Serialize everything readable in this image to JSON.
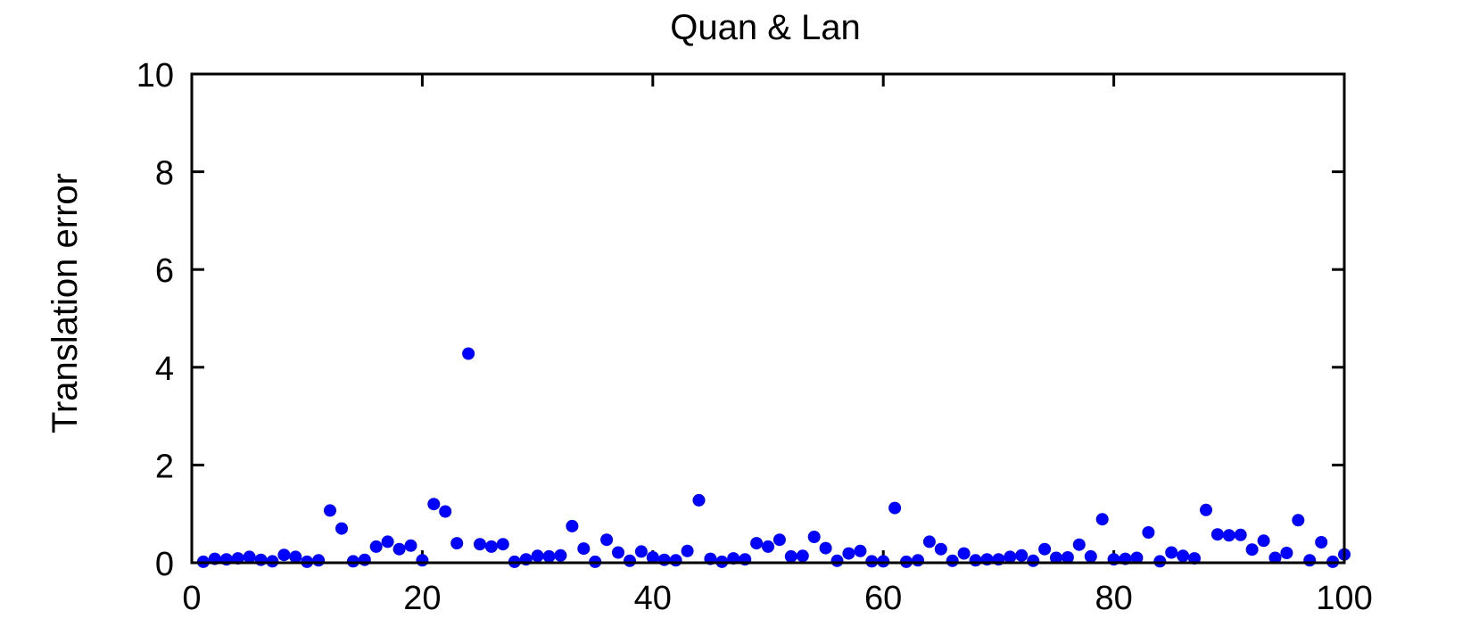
{
  "chart_data": {
    "type": "scatter",
    "title": "Quan & Lan",
    "xlabel": "",
    "ylabel": "Translation error",
    "xlim": [
      0,
      100
    ],
    "ylim": [
      0,
      10
    ],
    "xticks": [
      0,
      20,
      40,
      60,
      80,
      100
    ],
    "yticks": [
      0,
      2,
      4,
      6,
      8,
      10
    ],
    "grid": false,
    "legend": "none",
    "marker_color": "#0000ff",
    "series": [
      {
        "x": [
          1,
          2,
          3,
          4,
          5,
          6,
          7,
          8,
          9,
          10,
          11,
          12,
          13,
          14,
          15,
          16,
          17,
          18,
          19,
          20,
          21,
          22,
          23,
          24,
          25,
          26,
          27,
          28,
          29,
          30,
          31,
          32,
          33,
          34,
          35,
          36,
          37,
          38,
          39,
          40,
          41,
          42,
          43,
          44,
          45,
          46,
          47,
          48,
          49,
          50,
          51,
          52,
          53,
          54,
          55,
          56,
          57,
          58,
          59,
          60,
          61,
          62,
          63,
          64,
          65,
          66,
          67,
          68,
          69,
          70,
          71,
          72,
          73,
          74,
          75,
          76,
          77,
          78,
          79,
          80,
          81,
          82,
          83,
          84,
          85,
          86,
          87,
          88,
          89,
          90,
          91,
          92,
          93,
          94,
          95,
          96,
          97,
          98,
          99,
          100
        ],
        "y": [
          0.02,
          0.08,
          0.07,
          0.09,
          0.12,
          0.06,
          0.03,
          0.16,
          0.12,
          0.02,
          0.05,
          1.07,
          0.7,
          0.03,
          0.06,
          0.33,
          0.43,
          0.28,
          0.35,
          0.05,
          1.2,
          1.05,
          0.4,
          4.28,
          0.38,
          0.33,
          0.38,
          0.02,
          0.07,
          0.14,
          0.13,
          0.15,
          0.75,
          0.29,
          0.02,
          0.47,
          0.21,
          0.04,
          0.23,
          0.11,
          0.06,
          0.05,
          0.24,
          1.28,
          0.08,
          0.02,
          0.09,
          0.07,
          0.4,
          0.33,
          0.47,
          0.13,
          0.14,
          0.53,
          0.3,
          0.04,
          0.19,
          0.24,
          0.03,
          0.03,
          1.12,
          0.02,
          0.05,
          0.43,
          0.28,
          0.04,
          0.19,
          0.05,
          0.07,
          0.07,
          0.12,
          0.15,
          0.04,
          0.28,
          0.1,
          0.11,
          0.37,
          0.13,
          0.89,
          0.07,
          0.08,
          0.1,
          0.62,
          0.03,
          0.21,
          0.14,
          0.09,
          1.08,
          0.58,
          0.56,
          0.57,
          0.27,
          0.45,
          0.1,
          0.2,
          0.87,
          0.05,
          0.42,
          0.02,
          0.17
        ]
      }
    ]
  }
}
